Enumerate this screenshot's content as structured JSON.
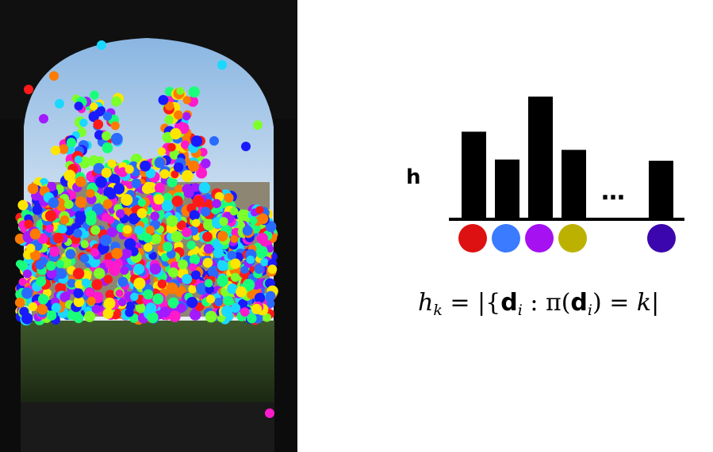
{
  "diagram": {
    "histogram_label": "h",
    "ellipsis": "…",
    "bar_levels": [
      0.71,
      0.48,
      1.0,
      0.56,
      0.47
    ],
    "bin_colors": [
      "#dd1111",
      "#3a7bff",
      "#a511f0",
      "#bdb100",
      "#3b06ad"
    ],
    "formula": {
      "lhs": "h",
      "lhs_sub": "k",
      "eq": " = |{",
      "vec": "d",
      "vec_sub": "i",
      "colon": " : π(",
      "vec2": "d",
      "vec2_sub": "i",
      "rhs": ") = ",
      "k": "k",
      "end": "|"
    }
  },
  "photo": {
    "description_colors": [
      "#ff1a1a",
      "#ff7a00",
      "#ffe600",
      "#7cff2a",
      "#1aff7a",
      "#1ad8ff",
      "#2a6bff",
      "#1a1aff",
      "#a31aff",
      "#ff1acc"
    ]
  }
}
